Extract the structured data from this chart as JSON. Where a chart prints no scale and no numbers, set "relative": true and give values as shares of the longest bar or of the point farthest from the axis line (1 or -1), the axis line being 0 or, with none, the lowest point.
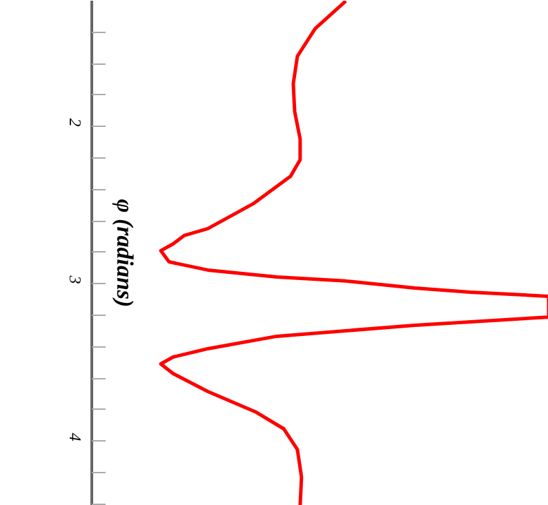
{
  "chart_data": {
    "type": "line",
    "orientation": "horizontal",
    "relative": true,
    "ylabel": "φ (radians)",
    "ylim": [
      4.41,
      1.2
    ],
    "yticks": [
      {
        "value": 1.4,
        "label": null
      },
      {
        "value": 1.6,
        "label": null
      },
      {
        "value": 1.8,
        "label": null
      },
      2,
      {
        "value": 2.2,
        "label": null
      },
      {
        "value": 2.4,
        "label": null
      },
      {
        "value": 2.6,
        "label": null
      },
      {
        "value": 2.8,
        "label": null
      },
      3,
      {
        "value": 3.2,
        "label": null
      },
      {
        "value": 3.4,
        "label": null
      },
      {
        "value": 3.6,
        "label": null
      },
      {
        "value": 3.8,
        "label": null
      },
      4,
      {
        "value": 4.2,
        "label": null
      },
      {
        "value": 4.4,
        "label": null
      }
    ],
    "tick_labels": "y",
    "grid": false,
    "x": [
      1.202,
      1.377,
      1.553,
      1.728,
      1.904,
      2.079,
      2.211,
      2.316,
      2.491,
      2.649,
      2.693,
      2.746,
      2.789,
      2.86,
      2.912,
      2.956,
      2.982,
      3.026,
      3.053,
      3.079,
      3.211,
      3.263,
      3.333,
      3.412,
      3.465,
      3.509,
      3.57,
      3.684,
      3.816,
      3.921,
      4.053,
      4.228,
      4.41
    ],
    "series": [
      {
        "color": "#ff0000",
        "values": [
          0.556,
          0.489,
          0.45,
          0.441,
          0.444,
          0.456,
          0.456,
          0.435,
          0.353,
          0.254,
          0.202,
          0.178,
          0.151,
          0.169,
          0.254,
          0.405,
          0.556,
          0.707,
          0.828,
          1,
          1,
          0.707,
          0.405,
          0.254,
          0.178,
          0.151,
          0.178,
          0.254,
          0.36,
          0.42,
          0.45,
          0.459,
          0.456
        ]
      }
    ]
  }
}
